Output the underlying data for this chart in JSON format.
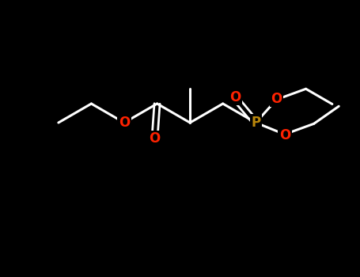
{
  "bg_color": "#000000",
  "bond_color": "#ffffff",
  "oxygen_color": "#ff2200",
  "phosphorus_color": "#b8860b",
  "line_width": 2.2,
  "figsize": [
    4.55,
    3.5
  ],
  "dpi": 100,
  "label_O": "O",
  "label_P": "P"
}
